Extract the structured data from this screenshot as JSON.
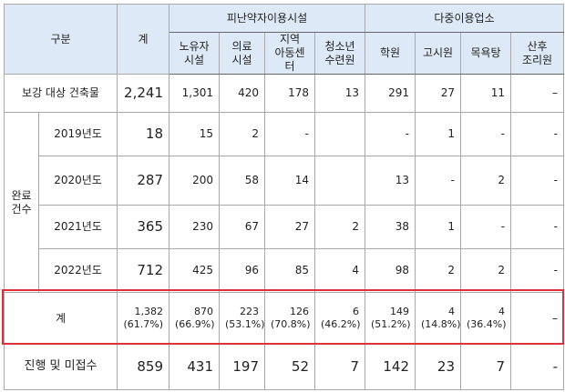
{
  "header": {
    "group": "구분",
    "total": "계",
    "group_a": "피난약자이용시설",
    "group_b": "다중이용업소",
    "columns": [
      "노유자\n시설",
      "의료\n시설",
      "지역\n아동센터",
      "청소년\n수련원",
      "학원",
      "고시원",
      "목욕탕",
      "산후\n조리원"
    ]
  },
  "completed_label": "완료\n건수",
  "rows": [
    {
      "label": "보강 대상 건축물",
      "total": "2,241",
      "cells": [
        "1,301",
        "420",
        "178",
        "13",
        "291",
        "27",
        "11",
        "–"
      ]
    },
    {
      "label": "2019년도",
      "total": "18",
      "cells": [
        "15",
        "2",
        "-",
        null,
        "-",
        "1",
        "-",
        "-"
      ]
    },
    {
      "label": "2020년도",
      "total": "287",
      "cells": [
        "200",
        "58",
        "14",
        null,
        "13",
        "-",
        "2",
        "-"
      ]
    },
    {
      "label": "2021년도",
      "total": "365",
      "cells": [
        "230",
        "67",
        "27",
        "2",
        "38",
        "1",
        "-",
        "-"
      ]
    },
    {
      "label": "2022년도",
      "total": "712",
      "cells": [
        "425",
        "96",
        "85",
        "4",
        "98",
        "2",
        "2",
        "-"
      ]
    },
    {
      "label": "계",
      "total": {
        "count": "1,382",
        "share": "(61.7%)"
      },
      "cells": [
        {
          "count": "870",
          "share": "(66.9%)"
        },
        {
          "count": "223",
          "share": "(53.1%)"
        },
        {
          "count": "126",
          "share": "(70.8%)"
        },
        {
          "count": "6",
          "share": "(46.2%)"
        },
        {
          "count": "149",
          "share": "(51.2%)"
        },
        {
          "count": "4",
          "share": "(14.8%)"
        },
        {
          "count": "4",
          "share": "(36.4%)"
        },
        "–"
      ]
    },
    {
      "label": "진행 및 미접수",
      "total": "859",
      "cells": [
        "431",
        "197",
        "52",
        "7",
        "142",
        "23",
        "7",
        "-"
      ]
    }
  ]
}
